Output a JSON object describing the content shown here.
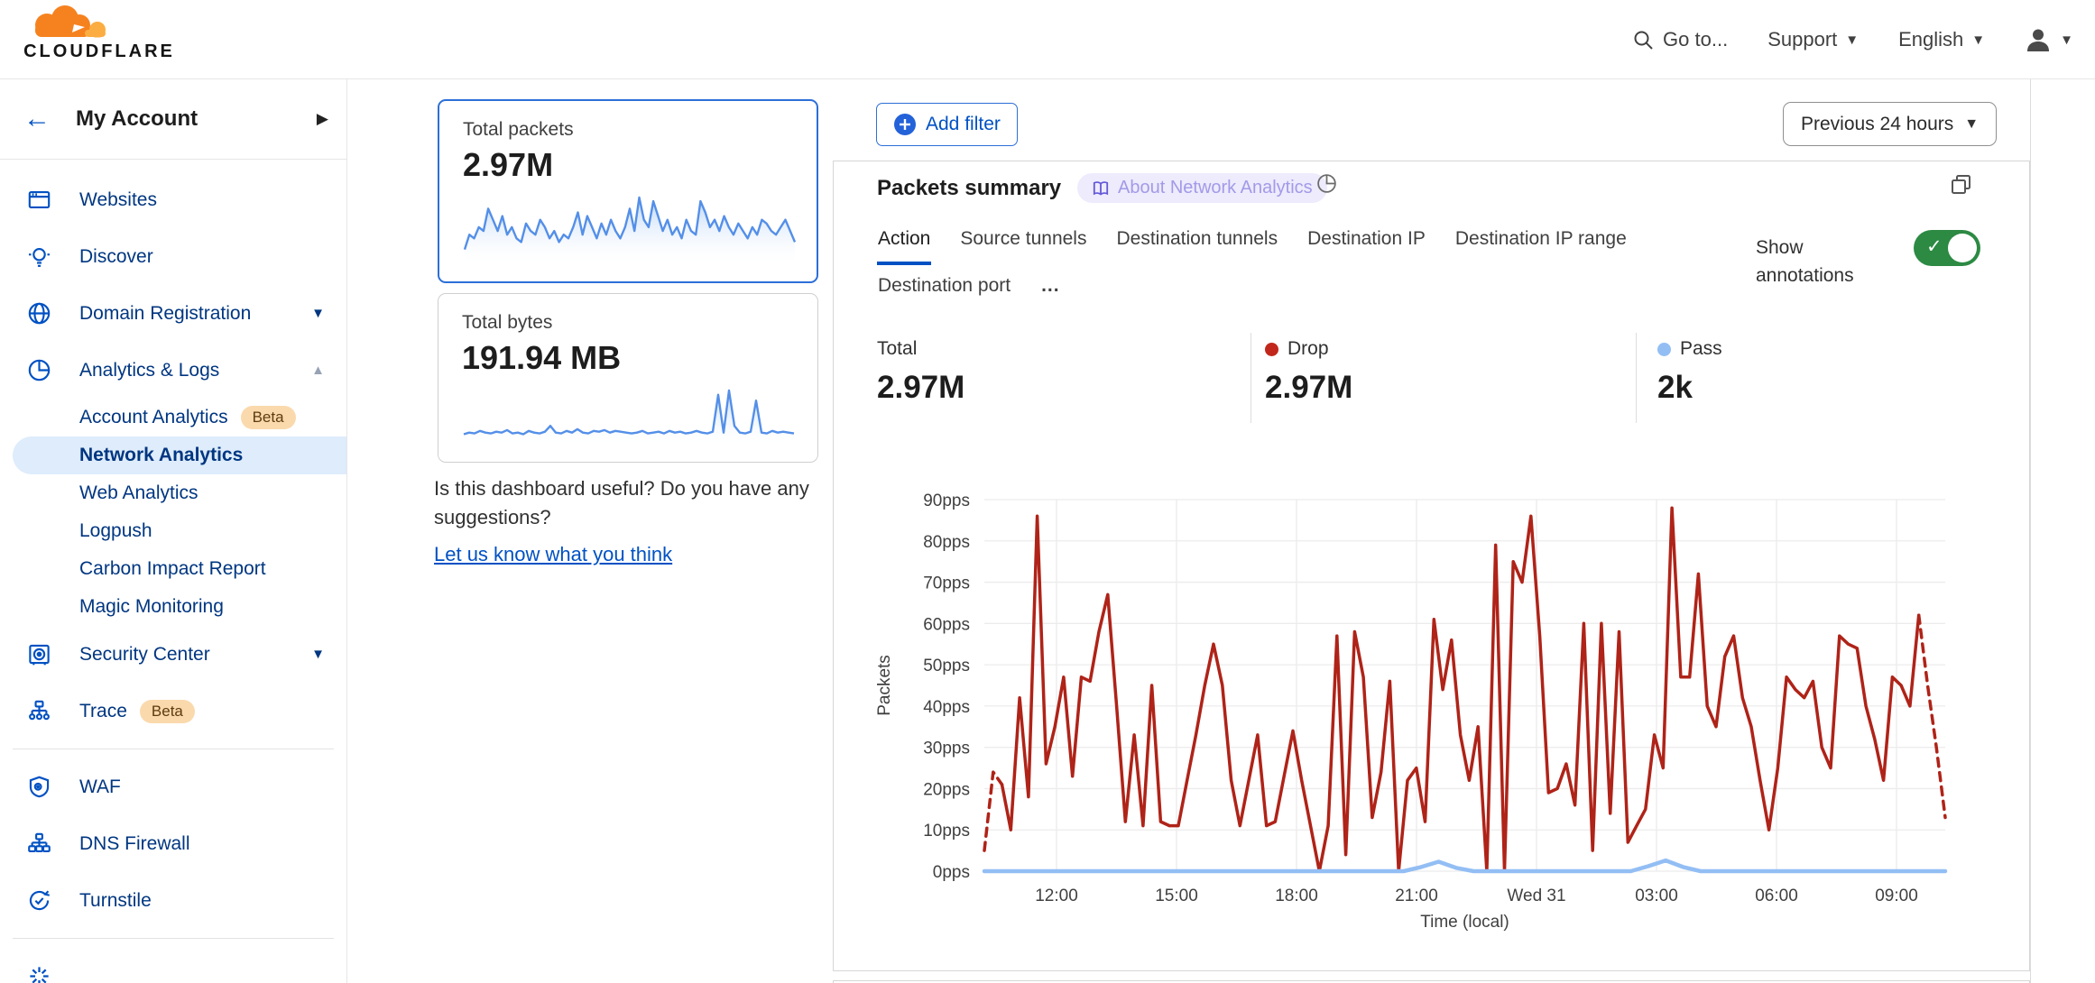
{
  "header": {
    "logo_text": "CLOUDFLARE",
    "goto_label": "Go to...",
    "support_label": "Support",
    "language_label": "English"
  },
  "colors": {
    "accent_blue": "#0051C3",
    "navy": "#003681",
    "brand_orange": "#F6821F",
    "brand_orange_light": "#FBAD41",
    "toggle_green": "#2C8A43",
    "drop_red": "#AF2318",
    "pass_blue": "#93BEF4",
    "spark_blue": "#548FE8"
  },
  "sidebar": {
    "account_label": "My Account",
    "items": [
      {
        "label": "Websites"
      },
      {
        "label": "Discover"
      },
      {
        "label": "Domain Registration"
      },
      {
        "label": "Analytics & Logs"
      },
      {
        "label": "Account Analytics",
        "badge": "Beta"
      },
      {
        "label": "Network Analytics"
      },
      {
        "label": "Web Analytics"
      },
      {
        "label": "Logpush"
      },
      {
        "label": "Carbon Impact Report"
      },
      {
        "label": "Magic Monitoring"
      },
      {
        "label": "Security Center"
      },
      {
        "label": "Trace",
        "badge": "Beta"
      },
      {
        "label": "WAF"
      },
      {
        "label": "DNS Firewall"
      },
      {
        "label": "Turnstile"
      }
    ]
  },
  "metrics": {
    "packets": {
      "label": "Total packets",
      "value": "2.97M",
      "spark": [
        15,
        35,
        30,
        45,
        40,
        70,
        55,
        40,
        60,
        35,
        45,
        30,
        25,
        50,
        40,
        35,
        55,
        45,
        30,
        40,
        25,
        35,
        30,
        45,
        65,
        35,
        60,
        45,
        30,
        50,
        35,
        55,
        40,
        30,
        45,
        70,
        40,
        85,
        55,
        45,
        80,
        60,
        40,
        55,
        35,
        45,
        30,
        55,
        40,
        35,
        80,
        65,
        45,
        55,
        40,
        60,
        45,
        35,
        50,
        40,
        30,
        45,
        35,
        55,
        50,
        40,
        35,
        45,
        55,
        40,
        25
      ]
    },
    "bytes": {
      "label": "Total bytes",
      "value": "191.94 MB",
      "spark": [
        8,
        10,
        9,
        12,
        10,
        9,
        11,
        10,
        13,
        9,
        10,
        8,
        12,
        10,
        9,
        11,
        18,
        10,
        9,
        12,
        10,
        14,
        10,
        9,
        12,
        11,
        13,
        10,
        12,
        11,
        10,
        9,
        10,
        12,
        9,
        10,
        11,
        9,
        12,
        10,
        11,
        9,
        10,
        12,
        10,
        9,
        11,
        55,
        10,
        60,
        18,
        10,
        9,
        11,
        48,
        10,
        9,
        12,
        10,
        11,
        10,
        9
      ]
    }
  },
  "feedback": {
    "question": "Is this dashboard useful? Do you have any suggestions?",
    "link": "Let us know what you think"
  },
  "toolbar": {
    "add_filter_label": "Add filter",
    "time_range_label": "Previous 24 hours"
  },
  "panel": {
    "title": "Packets summary",
    "about_badge": "About Network Analytics",
    "tabs_row1": [
      "Action",
      "Source tunnels",
      "Destination tunnels",
      "Destination IP",
      "Destination IP range"
    ],
    "tabs_row2": [
      "Destination port",
      "..."
    ],
    "active_tab": "Action",
    "show_annotations_label": "Show annotations",
    "annotations_on": true,
    "totals": [
      {
        "label": "Total",
        "value": "2.97M",
        "dot_color": null
      },
      {
        "label": "Drop",
        "value": "2.97M",
        "dot_color": "#C2271C"
      },
      {
        "label": "Pass",
        "value": "2k",
        "dot_color": "#93BEF4"
      }
    ]
  },
  "chart_data": {
    "type": "line",
    "title": "Packets summary",
    "xlabel": "Time (local)",
    "ylabel": "Packets",
    "x_ticks": [
      "12:00",
      "15:00",
      "18:00",
      "21:00",
      "Wed 31",
      "03:00",
      "06:00",
      "09:00"
    ],
    "y_ticks": [
      "0pps",
      "10pps",
      "20pps",
      "30pps",
      "40pps",
      "50pps",
      "60pps",
      "70pps",
      "80pps",
      "90pps"
    ],
    "ylim": [
      0,
      90
    ],
    "grid": true,
    "series": [
      {
        "name": "Drop",
        "color": "#AF2318",
        "dashed_ends": true,
        "values": [
          5,
          24,
          21,
          10,
          42,
          18,
          86,
          26,
          35,
          47,
          23,
          47,
          46,
          58,
          67,
          40,
          12,
          33,
          11,
          45,
          12,
          11,
          11,
          22,
          33,
          45,
          55,
          45,
          22,
          11,
          22,
          33,
          11,
          12,
          23,
          34,
          22,
          11,
          0,
          11,
          57,
          4,
          58,
          47,
          13,
          24,
          46,
          0,
          22,
          25,
          12,
          61,
          44,
          56,
          33,
          22,
          35,
          0,
          79,
          0,
          75,
          70,
          86,
          57,
          19,
          20,
          26,
          16,
          60,
          5,
          60,
          14,
          58,
          7,
          11,
          15,
          33,
          25,
          88,
          47,
          47,
          72,
          40,
          35,
          52,
          57,
          42,
          35,
          22,
          10,
          25,
          47,
          44,
          42,
          46,
          30,
          25,
          57,
          55,
          54,
          40,
          32,
          22,
          47,
          45,
          40,
          62,
          45,
          30,
          13
        ]
      },
      {
        "name": "Pass",
        "color": "#93BEF4",
        "dashed_ends": false,
        "values": [
          0,
          0,
          0,
          0,
          0,
          0,
          0,
          0,
          0,
          0,
          0,
          0,
          0,
          0,
          0,
          0,
          0,
          0,
          0,
          0,
          0,
          0,
          0,
          0,
          0,
          1,
          2.3,
          0.8,
          0,
          0,
          0,
          0,
          0,
          0,
          0,
          0,
          0,
          0,
          1.2,
          2.6,
          1,
          0,
          0,
          0,
          0,
          0,
          0,
          0,
          0,
          0,
          0,
          0,
          0,
          0,
          0,
          0
        ]
      }
    ]
  }
}
